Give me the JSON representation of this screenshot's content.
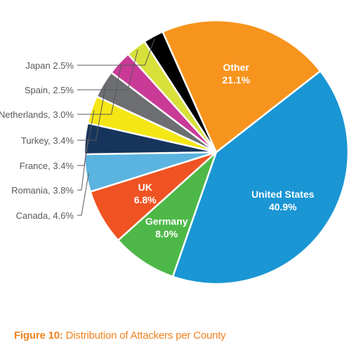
{
  "chart_data": {
    "type": "pie",
    "title": "",
    "slices": [
      {
        "label": "United States",
        "value_label": "40.9%",
        "value": 40.9,
        "color": "#1a96d4",
        "label_color": "#ffffff",
        "label_placement": "inside"
      },
      {
        "label": "Germany",
        "value_label": "8.0%",
        "value": 8.0,
        "color": "#4db848",
        "label_color": "#ffffff",
        "label_placement": "inside"
      },
      {
        "label": "UK",
        "value_label": "6.8%",
        "value": 6.8,
        "color": "#ef5323",
        "label_color": "#ffffff",
        "label_placement": "inside"
      },
      {
        "label": "Canada, 4.6%",
        "value": 4.6,
        "color": "#5bb4e0",
        "label_placement": "outside"
      },
      {
        "label": "Romania, 3.8%",
        "value": 3.8,
        "color": "#17355c",
        "label_placement": "outside"
      },
      {
        "label": "France, 3.4%",
        "value": 3.4,
        "color": "#f5e615",
        "label_placement": "outside"
      },
      {
        "label": "Turkey, 3.4%",
        "value": 3.4,
        "color": "#6d6e71",
        "label_placement": "outside"
      },
      {
        "label": "Netherlands, 3.0%",
        "value": 3.0,
        "color": "#c93a97",
        "label_placement": "outside"
      },
      {
        "label": "Spain, 2.5%",
        "value": 2.5,
        "color": "#d8e03a",
        "label_placement": "outside"
      },
      {
        "label": "Japan 2.5%",
        "value": 2.5,
        "color": "#000000",
        "label_placement": "outside"
      },
      {
        "label": "Other",
        "value_label": "21.1%",
        "value": 21.1,
        "color": "#f7941d",
        "label_color": "#ffffff",
        "label_placement": "inside"
      }
    ],
    "start_direction": "top-right, clockwise",
    "outside_label_color": "#58595b",
    "slice_border_color": "#ffffff"
  },
  "caption": {
    "label": "Figure 10:",
    "text": " Distribution of Attackers per County",
    "color": "#f0821e"
  }
}
